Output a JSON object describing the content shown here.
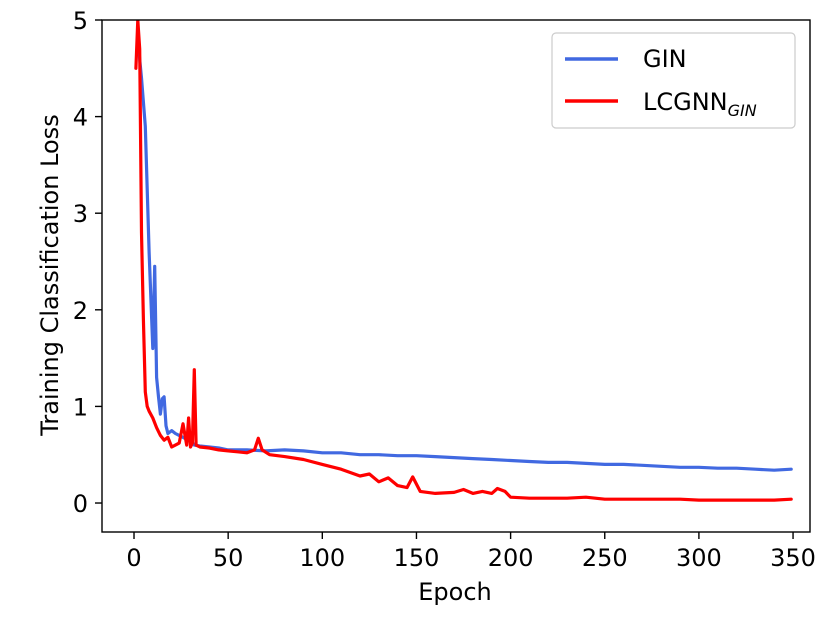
{
  "chart_data": {
    "type": "line",
    "xlabel": "Epoch",
    "ylabel": "Training Classification Loss",
    "xlim": [
      -17,
      359
    ],
    "ylim": [
      -0.3,
      5
    ],
    "xticks": [
      0,
      50,
      100,
      150,
      200,
      250,
      300,
      350
    ],
    "yticks": [
      0,
      1,
      2,
      3,
      4,
      5
    ],
    "grid": false,
    "legend": {
      "position": "top-right",
      "entries": [
        {
          "main": "GIN",
          "sub": ""
        },
        {
          "main": "LCGNN",
          "sub": "GIN"
        }
      ]
    },
    "series": [
      {
        "name": "GIN",
        "color": "#4169e1",
        "x": [
          2,
          4,
          6,
          8,
          10,
          11,
          12,
          13,
          14,
          15,
          16,
          17,
          18,
          20,
          22,
          24,
          26,
          28,
          30,
          32,
          35,
          40,
          45,
          50,
          60,
          70,
          80,
          90,
          100,
          110,
          120,
          130,
          140,
          150,
          160,
          170,
          180,
          190,
          200,
          210,
          220,
          230,
          240,
          250,
          260,
          270,
          280,
          290,
          300,
          310,
          320,
          330,
          340,
          349
        ],
        "y": [
          4.8,
          4.4,
          3.9,
          2.6,
          1.6,
          2.45,
          1.3,
          1.1,
          0.92,
          1.08,
          1.1,
          0.8,
          0.72,
          0.75,
          0.72,
          0.7,
          0.68,
          0.66,
          0.65,
          0.6,
          0.59,
          0.58,
          0.57,
          0.55,
          0.55,
          0.54,
          0.55,
          0.54,
          0.52,
          0.52,
          0.5,
          0.5,
          0.49,
          0.49,
          0.48,
          0.47,
          0.46,
          0.45,
          0.44,
          0.43,
          0.42,
          0.42,
          0.41,
          0.4,
          0.4,
          0.39,
          0.38,
          0.37,
          0.37,
          0.36,
          0.36,
          0.35,
          0.34,
          0.35
        ]
      },
      {
        "name": "LCGNN",
        "color": "#ff0000",
        "x": [
          1,
          2,
          3,
          4,
          5,
          6,
          7,
          8,
          10,
          12,
          14,
          16,
          18,
          20,
          22,
          24,
          26,
          28,
          29,
          30,
          31,
          32,
          33,
          35,
          40,
          45,
          50,
          55,
          60,
          64,
          66,
          68,
          72,
          80,
          90,
          100,
          110,
          120,
          125,
          130,
          135,
          140,
          145,
          148,
          152,
          160,
          170,
          175,
          180,
          185,
          190,
          193,
          197,
          200,
          210,
          220,
          230,
          240,
          250,
          260,
          270,
          280,
          290,
          300,
          310,
          320,
          330,
          340,
          349
        ],
        "y": [
          4.5,
          5.0,
          4.7,
          2.8,
          1.9,
          1.15,
          1.0,
          0.95,
          0.88,
          0.78,
          0.7,
          0.65,
          0.68,
          0.58,
          0.6,
          0.62,
          0.82,
          0.6,
          0.88,
          0.58,
          0.62,
          1.38,
          0.6,
          0.58,
          0.57,
          0.55,
          0.54,
          0.53,
          0.52,
          0.55,
          0.67,
          0.55,
          0.5,
          0.48,
          0.45,
          0.4,
          0.35,
          0.28,
          0.3,
          0.22,
          0.26,
          0.18,
          0.16,
          0.27,
          0.12,
          0.1,
          0.11,
          0.14,
          0.1,
          0.12,
          0.1,
          0.15,
          0.12,
          0.06,
          0.05,
          0.05,
          0.05,
          0.06,
          0.04,
          0.04,
          0.04,
          0.04,
          0.04,
          0.03,
          0.03,
          0.03,
          0.03,
          0.03,
          0.04
        ]
      }
    ]
  }
}
